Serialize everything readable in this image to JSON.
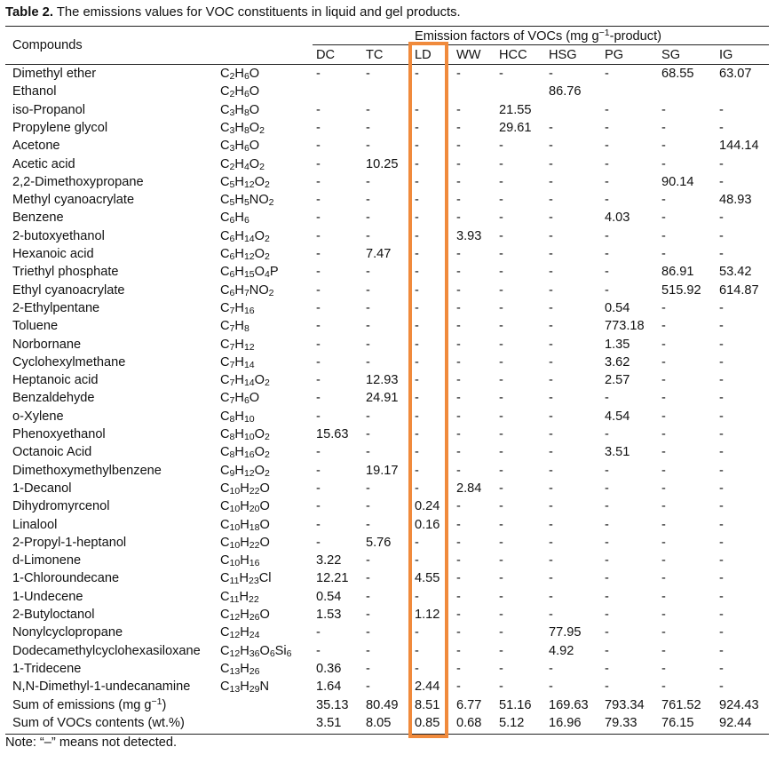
{
  "caption": {
    "label": "Table 2.",
    "text": " The emissions values for VOC constituents in liquid and gel products."
  },
  "header": {
    "compounds": "Compounds",
    "group_prefix": "Emission factors of VOCs (mg g",
    "group_sup": "−1",
    "group_suffix": "-product)",
    "columns": [
      "DC",
      "TC",
      "LD",
      "WW",
      "HCC",
      "HSG",
      "PG",
      "SG",
      "IG"
    ]
  },
  "rows": [
    {
      "name": "Dimethyl ether",
      "formula": "C2H6O",
      "values": [
        "-",
        "-",
        "-",
        "-",
        "-",
        "-",
        "-",
        "68.55",
        "63.07"
      ]
    },
    {
      "name": "Ethanol",
      "formula": "C2H6O",
      "values": [
        "",
        "",
        "",
        "",
        "",
        "86.76",
        "",
        "",
        ""
      ]
    },
    {
      "name": "iso-Propanol",
      "formula": "C3H8O",
      "values": [
        "-",
        "-",
        "-",
        "-",
        "21.55",
        "",
        "-",
        "-",
        "-"
      ]
    },
    {
      "name": "Propylene glycol",
      "formula": "C3H8O2",
      "values": [
        "-",
        "-",
        "-",
        "-",
        "29.61",
        "-",
        "-",
        "-",
        "-"
      ]
    },
    {
      "name": "Acetone",
      "formula": "C3H6O",
      "values": [
        "-",
        "-",
        "-",
        "-",
        "-",
        "-",
        "-",
        "-",
        "144.14"
      ]
    },
    {
      "name": "Acetic acid",
      "formula": "C2H4O2",
      "values": [
        "-",
        "10.25",
        "-",
        "-",
        "-",
        "-",
        "-",
        "-",
        "-"
      ]
    },
    {
      "name": "2,2-Dimethoxypropane",
      "formula": "C5H12O2",
      "values": [
        "-",
        "-",
        "-",
        "-",
        "-",
        "-",
        "-",
        "90.14",
        "-"
      ]
    },
    {
      "name": "Methyl cyanoacrylate",
      "formula": "C5H5NO2",
      "values": [
        "-",
        "-",
        "-",
        "-",
        "-",
        "-",
        "-",
        "-",
        "48.93"
      ]
    },
    {
      "name": "Benzene",
      "formula": "C6H6",
      "values": [
        "-",
        "-",
        "-",
        "-",
        "-",
        "-",
        "4.03",
        "-",
        "-"
      ]
    },
    {
      "name": "2-butoxyethanol",
      "formula": "C6H14O2",
      "values": [
        "-",
        "-",
        "-",
        "3.93",
        "-",
        "-",
        "-",
        "-",
        "-"
      ]
    },
    {
      "name": "Hexanoic acid",
      "formula": "C6H12O2",
      "values": [
        "-",
        "7.47",
        "-",
        "-",
        "-",
        "-",
        "-",
        "-",
        "-"
      ]
    },
    {
      "name": "Triethyl phosphate",
      "formula": "C6H15O4P",
      "values": [
        "-",
        "-",
        "-",
        "-",
        "-",
        "-",
        "-",
        "86.91",
        "53.42"
      ]
    },
    {
      "name": "Ethyl cyanoacrylate",
      "formula": "C6H7NO2",
      "values": [
        "-",
        "-",
        "-",
        "-",
        "-",
        "-",
        "-",
        "515.92",
        "614.87"
      ]
    },
    {
      "name": "2-Ethylpentane",
      "formula": "C7H16",
      "values": [
        "-",
        "-",
        "-",
        "-",
        "-",
        "-",
        "0.54",
        "-",
        "-"
      ]
    },
    {
      "name": "Toluene",
      "formula": "C7H8",
      "values": [
        "-",
        "-",
        "-",
        "-",
        "-",
        "-",
        "773.18",
        "-",
        "-"
      ]
    },
    {
      "name": "Norbornane",
      "formula": "C7H12",
      "values": [
        "-",
        "-",
        "-",
        "-",
        "-",
        "-",
        "1.35",
        "-",
        "-"
      ]
    },
    {
      "name": "Cyclohexylmethane",
      "formula": "C7H14",
      "values": [
        "-",
        "-",
        "-",
        "-",
        "-",
        "-",
        "3.62",
        "-",
        "-"
      ]
    },
    {
      "name": "Heptanoic acid",
      "formula": "C7H14O2",
      "values": [
        "-",
        "12.93",
        "-",
        "-",
        "-",
        "-",
        "2.57",
        "-",
        "-"
      ]
    },
    {
      "name": "Benzaldehyde",
      "formula": "C7H6O",
      "values": [
        "-",
        "24.91",
        "-",
        "-",
        "-",
        "-",
        "-",
        "-",
        "-"
      ]
    },
    {
      "name": "o-Xylene",
      "formula": "C8H10",
      "values": [
        "-",
        "-",
        "-",
        "-",
        "-",
        "-",
        "4.54",
        "-",
        "-"
      ]
    },
    {
      "name": "Phenoxyethanol",
      "formula": "C8H10O2",
      "values": [
        "15.63",
        "-",
        "-",
        "-",
        "-",
        "-",
        "-",
        "-",
        "-"
      ]
    },
    {
      "name": "Octanoic Acid",
      "formula": "C8H16O2",
      "values": [
        "-",
        "-",
        "-",
        "-",
        "-",
        "-",
        "3.51",
        "-",
        "-"
      ]
    },
    {
      "name": "Dimethoxymethylbenzene",
      "formula": "C9H12O2",
      "values": [
        "-",
        "19.17",
        "-",
        "-",
        "-",
        "-",
        "-",
        "-",
        "-"
      ]
    },
    {
      "name": "1-Decanol",
      "formula": "C10H22O",
      "values": [
        "-",
        "-",
        "-",
        "2.84",
        "-",
        "-",
        "-",
        "-",
        "-"
      ]
    },
    {
      "name": "Dihydromyrcenol",
      "formula": "C10H20O",
      "values": [
        "-",
        "-",
        "0.24",
        "-",
        "-",
        "-",
        "-",
        "-",
        "-"
      ]
    },
    {
      "name": "Linalool",
      "formula": "C10H18O",
      "values": [
        "-",
        "-",
        "0.16",
        "-",
        "-",
        "-",
        "-",
        "-",
        "-"
      ]
    },
    {
      "name": "2-Propyl-1-heptanol",
      "formula": "C10H22O",
      "values": [
        "-",
        "5.76",
        "-",
        "-",
        "-",
        "-",
        "-",
        "-",
        "-"
      ]
    },
    {
      "name": "d-Limonene",
      "formula": "C10H16",
      "values": [
        "3.22",
        "-",
        "-",
        "-",
        "-",
        "-",
        "-",
        "-",
        "-"
      ]
    },
    {
      "name": "1-Chloroundecane",
      "formula": "C11H23Cl",
      "values": [
        "12.21",
        "-",
        "4.55",
        "-",
        "-",
        "-",
        "-",
        "-",
        "-"
      ]
    },
    {
      "name": "1-Undecene",
      "formula": "C11H22",
      "values": [
        "0.54",
        "-",
        "-",
        "-",
        "-",
        "-",
        "-",
        "-",
        "-"
      ]
    },
    {
      "name": "2-Butyloctanol",
      "formula": "C12H26O",
      "values": [
        "1.53",
        "-",
        "1.12",
        "-",
        "-",
        "-",
        "-",
        "-",
        "-"
      ]
    },
    {
      "name": "Nonylcyclopropane",
      "formula": "C12H24",
      "values": [
        "-",
        "-",
        "-",
        "-",
        "-",
        "77.95",
        "-",
        "-",
        "-"
      ]
    },
    {
      "name": "Dodecamethylcyclohexasiloxane",
      "formula": "C12H36O6Si6",
      "values": [
        "-",
        "-",
        "-",
        "-",
        "-",
        "4.92",
        "-",
        "-",
        "-"
      ]
    },
    {
      "name": "1-Tridecene",
      "formula": "C13H26",
      "values": [
        "0.36",
        "-",
        "-",
        "-",
        "-",
        "-",
        "-",
        "-",
        "-"
      ]
    },
    {
      "name": "N,N-Dimethyl-1-undecanamine",
      "formula": "C13H29N",
      "values": [
        "1.64",
        "-",
        "2.44",
        "-",
        "-",
        "-",
        "-",
        "-",
        "-"
      ]
    }
  ],
  "sum_emissions": {
    "label_prefix": "Sum of emissions (mg g",
    "label_sup": "−1",
    "label_suffix": ")",
    "values": [
      "35.13",
      "80.49",
      "8.51",
      "6.77",
      "51.16",
      "169.63",
      "793.34",
      "761.52",
      "924.43"
    ]
  },
  "sum_contents": {
    "label": "Sum of VOCs contents (wt.%)",
    "values": [
      "3.51",
      "8.05",
      "0.85",
      "0.68",
      "5.12",
      "16.96",
      "79.33",
      "76.15",
      "92.44"
    ]
  },
  "note": "Note: “–” means not detected.",
  "highlight": {
    "column": "LD",
    "color": "#f08a3c"
  }
}
